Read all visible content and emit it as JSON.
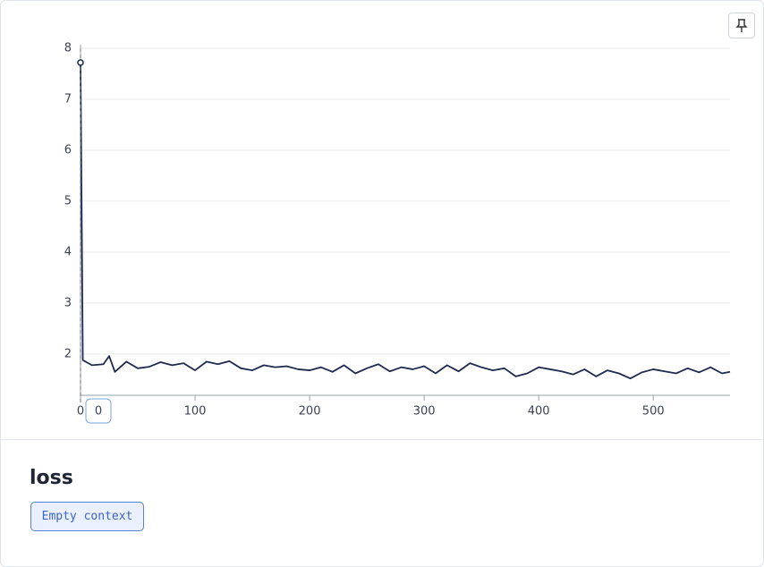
{
  "chart_data": {
    "type": "line",
    "x": [
      0,
      2,
      10,
      20,
      25,
      30,
      40,
      50,
      60,
      70,
      80,
      90,
      100,
      110,
      120,
      130,
      140,
      150,
      160,
      170,
      180,
      190,
      200,
      210,
      220,
      230,
      240,
      250,
      260,
      270,
      280,
      290,
      300,
      310,
      320,
      330,
      340,
      350,
      360,
      370,
      380,
      390,
      400,
      410,
      420,
      430,
      440,
      450,
      460,
      470,
      480,
      490,
      500,
      510,
      520,
      530,
      540,
      550,
      560,
      567
    ],
    "series": [
      {
        "color": "#1e2a4f",
        "values": [
          7.72,
          1.88,
          1.78,
          1.8,
          1.96,
          1.65,
          1.85,
          1.72,
          1.75,
          1.84,
          1.78,
          1.82,
          1.68,
          1.85,
          1.8,
          1.86,
          1.72,
          1.68,
          1.78,
          1.74,
          1.76,
          1.7,
          1.68,
          1.74,
          1.65,
          1.78,
          1.62,
          1.72,
          1.8,
          1.66,
          1.74,
          1.7,
          1.76,
          1.62,
          1.78,
          1.66,
          1.82,
          1.74,
          1.68,
          1.72,
          1.56,
          1.62,
          1.74,
          1.7,
          1.66,
          1.6,
          1.7,
          1.56,
          1.68,
          1.62,
          1.52,
          1.64,
          1.7,
          1.66,
          1.62,
          1.72,
          1.64,
          1.74,
          1.62,
          1.65
        ]
      }
    ],
    "xlim": [
      0,
      567
    ],
    "ylim": [
      1.19,
      8
    ],
    "xticks": [
      0,
      100,
      200,
      300,
      400,
      500
    ],
    "yticks": [
      2,
      3,
      4,
      5,
      6,
      7,
      8
    ],
    "grid": true
  },
  "panel": {
    "title": "loss",
    "context": "Empty context"
  }
}
